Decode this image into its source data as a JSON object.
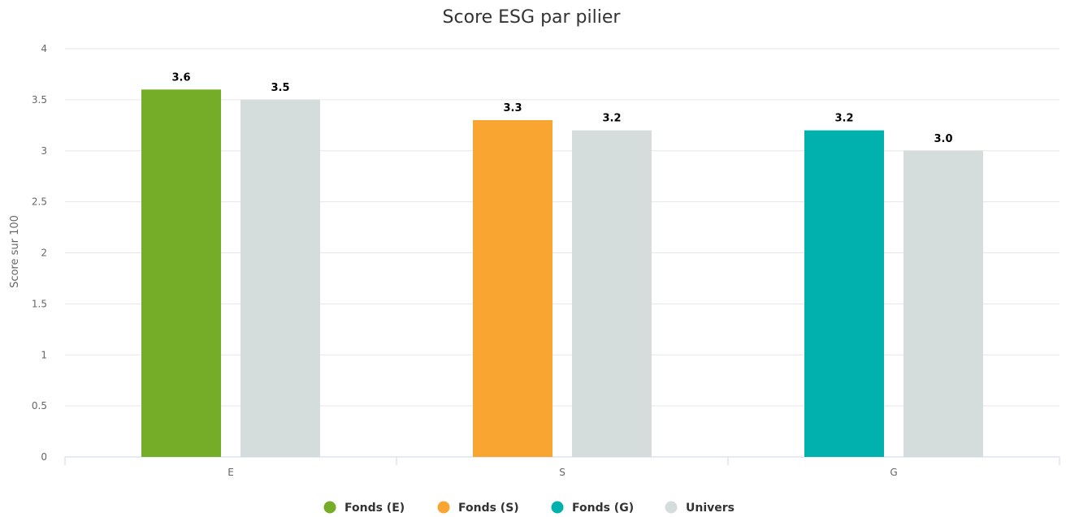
{
  "chart_data": {
    "type": "bar",
    "title": "Score ESG par pilier",
    "xlabel": "",
    "ylabel": "Score sur 100",
    "ylim": [
      0,
      4
    ],
    "yticks": [
      "0",
      "0.5",
      "1",
      "1.5",
      "2",
      "2.5",
      "3",
      "3.5",
      "4"
    ],
    "grid": true,
    "legend_position": "bottom",
    "categories": [
      "E",
      "S",
      "G"
    ],
    "series": [
      {
        "name": "Fonds (E)",
        "color": "#76ad28",
        "values": [
          3.6,
          null,
          null
        ],
        "labels": [
          "3.6",
          "",
          ""
        ]
      },
      {
        "name": "Fonds (S)",
        "color": "#f8a532",
        "values": [
          null,
          3.3,
          null
        ],
        "labels": [
          "",
          "3.3",
          ""
        ]
      },
      {
        "name": "Fonds (G)",
        "color": "#00b1ad",
        "values": [
          null,
          null,
          3.2
        ],
        "labels": [
          "",
          "",
          "3.2"
        ]
      },
      {
        "name": "Univers",
        "color": "#d5dcdc",
        "values": [
          3.5,
          3.2,
          3.0
        ],
        "labels": [
          "3.5",
          "3.2",
          "3.0"
        ]
      }
    ]
  }
}
